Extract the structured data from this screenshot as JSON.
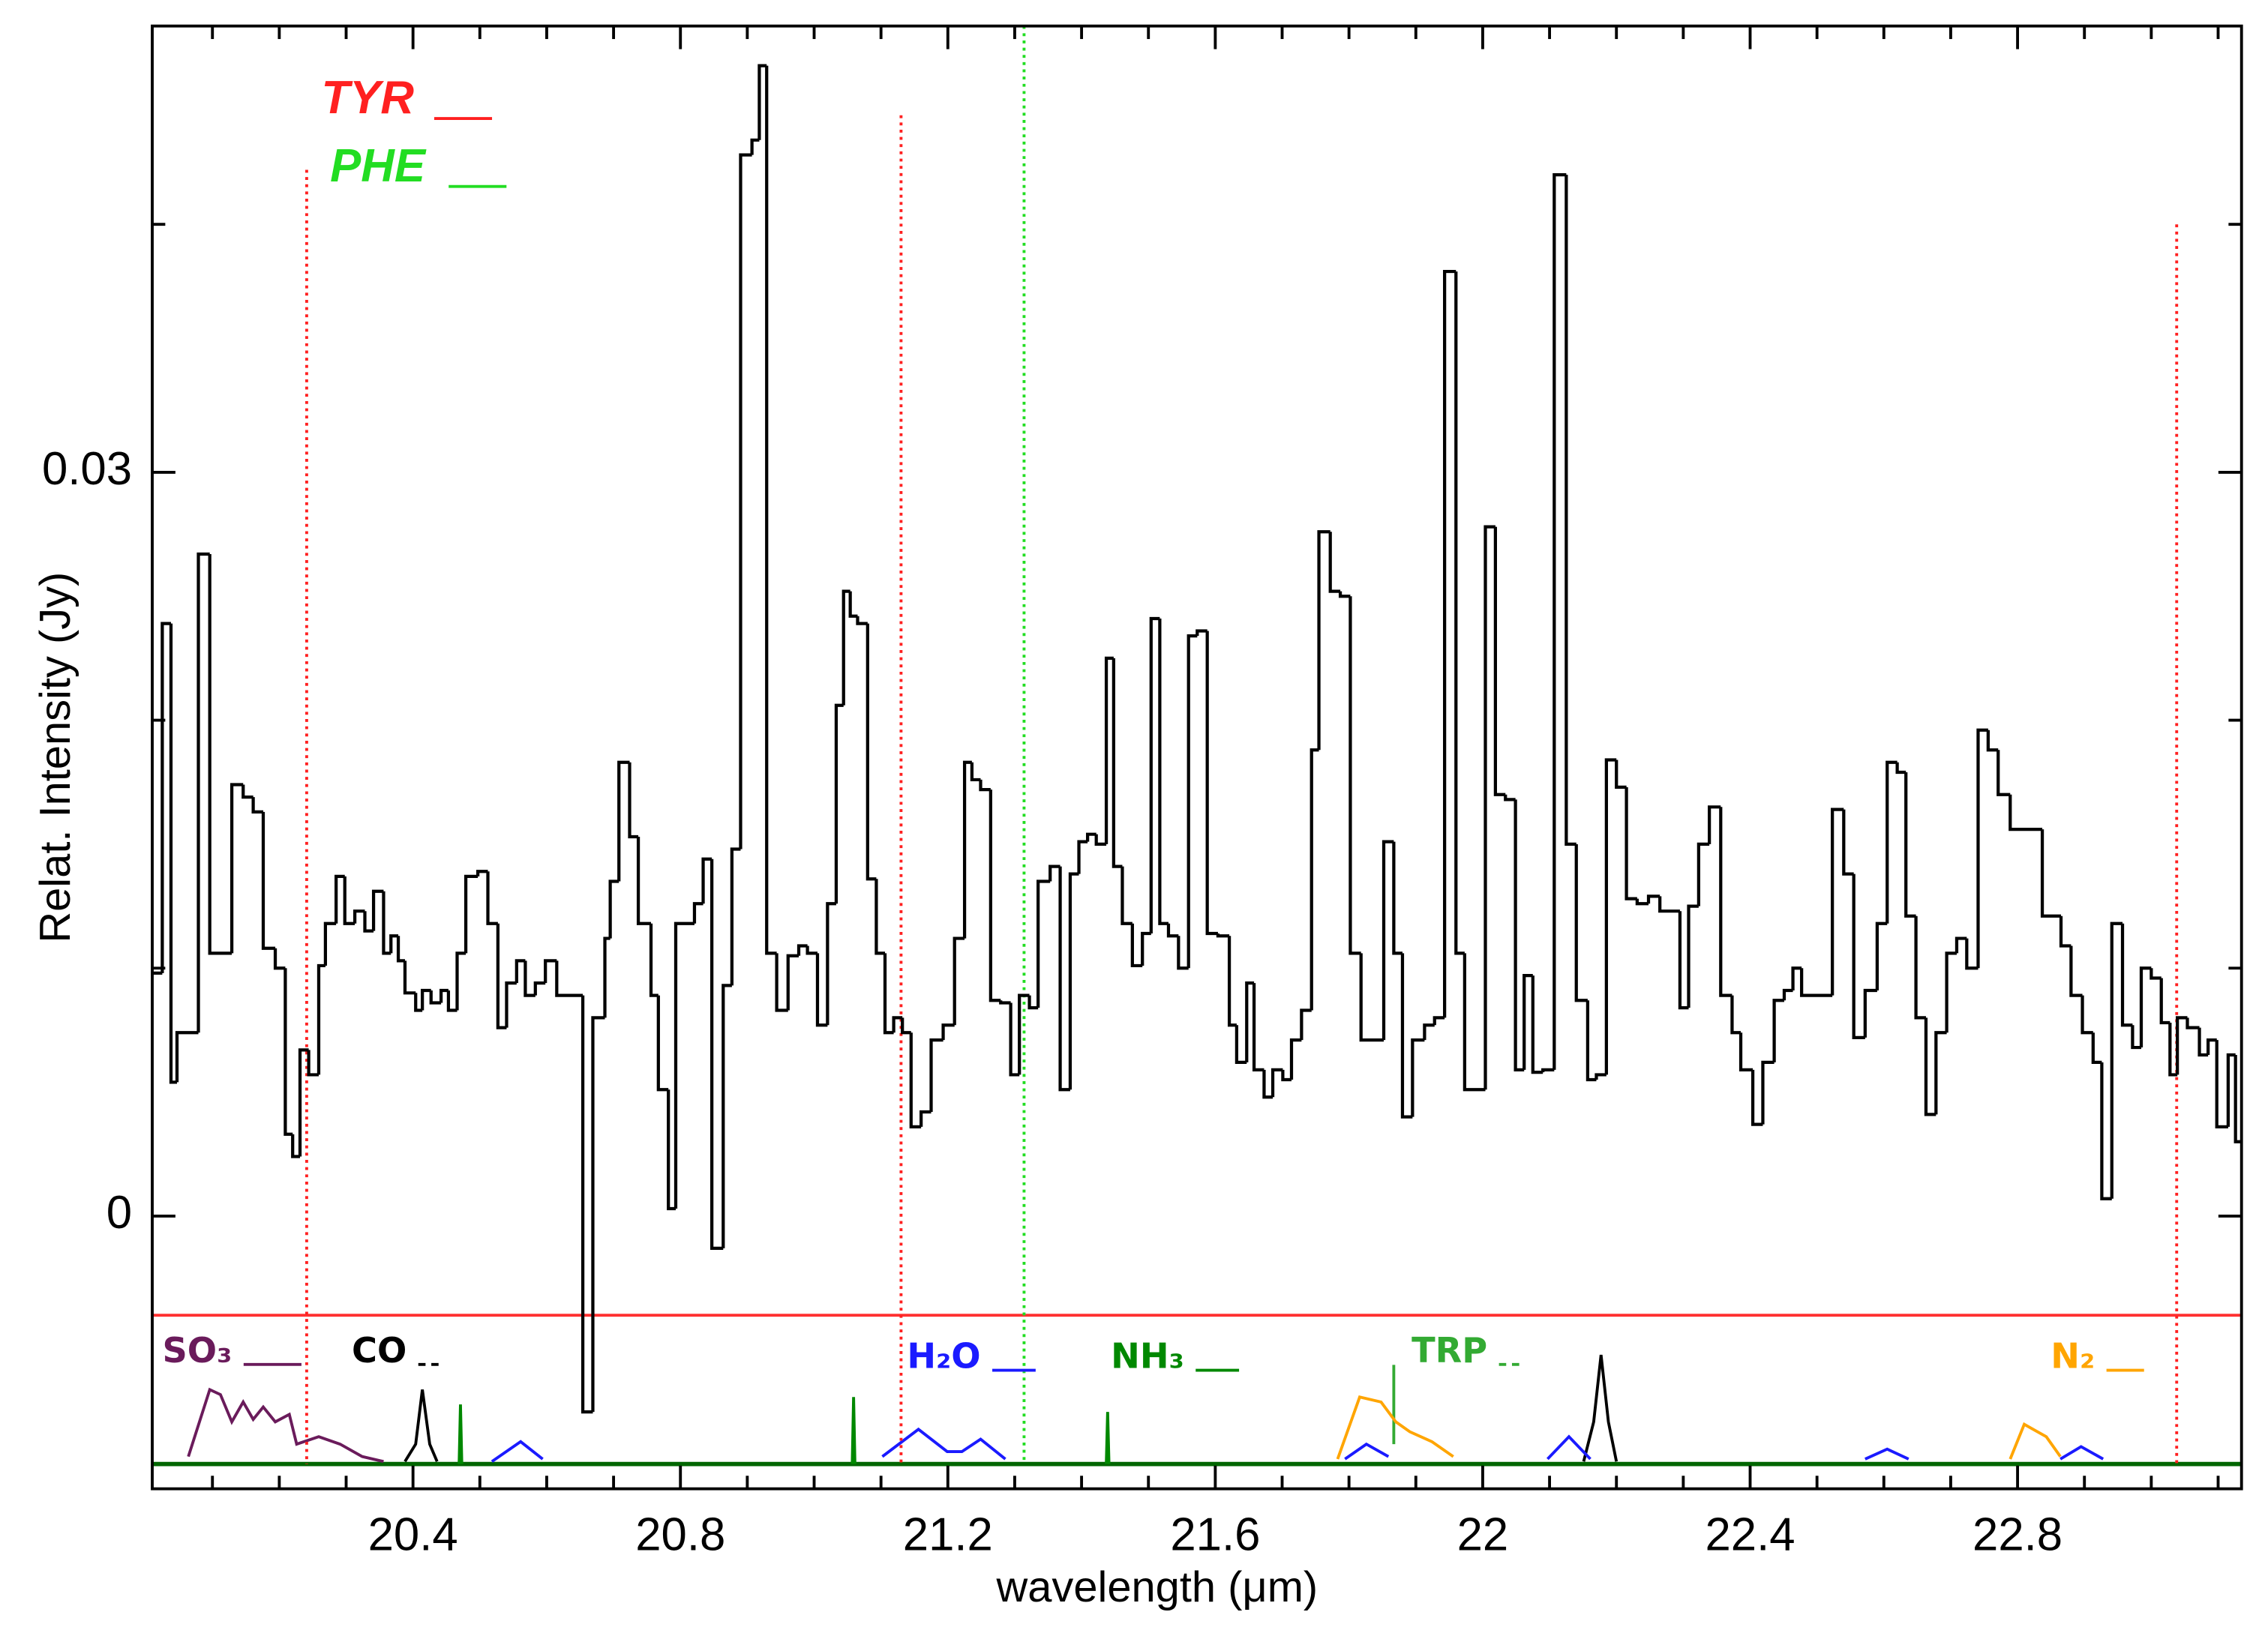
{
  "chart_data": {
    "type": "step",
    "y_label": "Relat. Intensity (Jy)",
    "x_label": "wavelength (μm)",
    "xlim": [
      20.01,
      23.135
    ],
    "ylim": [
      -0.011,
      0.048
    ],
    "xticks": [
      20.4,
      20.8,
      21.2,
      21.6,
      22,
      22.4,
      22.8
    ],
    "xminor": [
      20.1,
      20.2,
      20.3,
      20.5,
      20.6,
      20.7,
      20.9,
      21,
      21.1,
      21.3,
      21.4,
      21.5,
      21.7,
      21.8,
      21.9,
      22.1,
      22.2,
      22.3,
      22.5,
      22.6,
      22.7,
      22.9,
      23,
      23.1
    ],
    "yticks": [
      0,
      0.03
    ],
    "yminor": [
      0.01,
      0.02,
      0.04
    ],
    "series": [
      {
        "color": "#000000",
        "bins": [
          20.01,
          20.025,
          20.038,
          20.047,
          20.079,
          20.096,
          20.129,
          20.146,
          20.161,
          20.176,
          20.194,
          20.209,
          20.22,
          20.231,
          20.244,
          20.259,
          20.269,
          20.285,
          20.298,
          20.313,
          20.328,
          20.341,
          20.356,
          20.367,
          20.378,
          20.388,
          20.404,
          20.414,
          20.427,
          20.442,
          20.453,
          20.466,
          20.479,
          20.497,
          20.512,
          20.527,
          20.54,
          20.555,
          20.568,
          20.583,
          20.598,
          20.615,
          20.654,
          20.669,
          20.687,
          20.695,
          20.708,
          20.724,
          20.737,
          20.756,
          20.767,
          20.782,
          20.793,
          20.821,
          20.834,
          20.847,
          20.864,
          20.877,
          20.89,
          20.907,
          20.918,
          20.929,
          20.944,
          20.961,
          20.977,
          20.99,
          21.005,
          21.02,
          21.033,
          21.044,
          21.054,
          21.065,
          21.08,
          21.093,
          21.106,
          21.119,
          21.132,
          21.145,
          21.16,
          21.175,
          21.193,
          21.21,
          21.225,
          21.236,
          21.249,
          21.264,
          21.279,
          21.294,
          21.307,
          21.322,
          21.335,
          21.353,
          21.368,
          21.383,
          21.396,
          21.409,
          21.422,
          21.437,
          21.448,
          21.461,
          21.476,
          21.491,
          21.504,
          21.517,
          21.53,
          21.545,
          21.56,
          21.573,
          21.588,
          21.604,
          21.621,
          21.632,
          21.647,
          21.658,
          21.673,
          21.686,
          21.701,
          21.714,
          21.729,
          21.744,
          21.755,
          21.772,
          21.787,
          21.802,
          21.818,
          21.852,
          21.867,
          21.88,
          21.895,
          21.913,
          21.928,
          21.943,
          21.96,
          21.973,
          22.004,
          22.019,
          22.034,
          22.049,
          22.062,
          22.075,
          22.09,
          22.107,
          22.125,
          22.14,
          22.157,
          22.17,
          22.185,
          22.2,
          22.215,
          22.231,
          22.248,
          22.265,
          22.295,
          22.308,
          22.323,
          22.339,
          22.356,
          22.373,
          22.386,
          22.404,
          22.419,
          22.436,
          22.451,
          22.464,
          22.477,
          22.523,
          22.54,
          22.555,
          22.572,
          22.59,
          22.605,
          22.62,
          22.633,
          22.648,
          22.663,
          22.678,
          22.694,
          22.709,
          22.724,
          22.741,
          22.756,
          22.771,
          22.789,
          22.837,
          22.865,
          22.88,
          22.897,
          22.913,
          22.926,
          22.941,
          22.957,
          22.972,
          22.985,
          23.0,
          23.015,
          23.028,
          23.039,
          23.054,
          23.072,
          23.085,
          23.098,
          23.115,
          23.126,
          23.135
        ],
        "values": [
          0.0098,
          0.0239,
          0.0054,
          0.0074,
          0.0267,
          0.0106,
          0.0174,
          0.0169,
          0.0163,
          0.0108,
          0.01,
          0.0033,
          0.0024,
          0.0067,
          0.0057,
          0.0101,
          0.0118,
          0.0137,
          0.0118,
          0.0123,
          0.0115,
          0.0131,
          0.0106,
          0.0113,
          0.0103,
          0.009,
          0.0083,
          0.0091,
          0.0086,
          0.0091,
          0.0083,
          0.0106,
          0.0137,
          0.0139,
          0.0118,
          0.0076,
          0.0094,
          0.0103,
          0.0089,
          0.0094,
          0.0103,
          0.0089,
          -0.0079,
          0.008,
          0.0112,
          0.0135,
          0.0183,
          0.0153,
          0.0118,
          0.0089,
          0.0051,
          0.0003,
          0.0118,
          0.0126,
          0.0144,
          -0.0013,
          0.0093,
          0.0148,
          0.0428,
          0.0434,
          0.0464,
          0.0106,
          0.0083,
          0.0105,
          0.0109,
          0.0106,
          0.0077,
          0.0126,
          0.0206,
          0.0252,
          0.0242,
          0.0239,
          0.0136,
          0.0106,
          0.0074,
          0.008,
          0.0074,
          0.0036,
          0.0042,
          0.0071,
          0.0077,
          0.0112,
          0.0183,
          0.0176,
          0.0172,
          0.0087,
          0.0086,
          0.0057,
          0.0089,
          0.0084,
          0.0135,
          0.0141,
          0.0051,
          0.0138,
          0.0151,
          0.0154,
          0.015,
          0.0225,
          0.0141,
          0.0118,
          0.0101,
          0.0114,
          0.0241,
          0.0118,
          0.0113,
          0.01,
          0.0234,
          0.0236,
          0.0114,
          0.0113,
          0.0077,
          0.0062,
          0.0094,
          0.0059,
          0.0048,
          0.0059,
          0.0055,
          0.0071,
          0.0083,
          0.0188,
          0.0276,
          0.0252,
          0.025,
          0.0106,
          0.0071,
          0.0151,
          0.0106,
          0.004,
          0.0071,
          0.0077,
          0.008,
          0.0381,
          0.0106,
          0.0051,
          0.0278,
          0.017,
          0.0168,
          0.0059,
          0.0097,
          0.0058,
          0.0059,
          0.042,
          0.015,
          0.0087,
          0.0055,
          0.0057,
          0.0184,
          0.0173,
          0.0128,
          0.0126,
          0.0129,
          0.0123,
          0.0084,
          0.0125,
          0.015,
          0.0165,
          0.0089,
          0.0074,
          0.0059,
          0.0037,
          0.0062,
          0.0087,
          0.0091,
          0.01,
          0.0089,
          0.0164,
          0.0138,
          0.0072,
          0.0091,
          0.0118,
          0.0183,
          0.0179,
          0.0121,
          0.008,
          0.0041,
          0.0074,
          0.0106,
          0.0112,
          0.01,
          0.0196,
          0.0188,
          0.017,
          0.0156,
          0.0121,
          0.0109,
          0.0089,
          0.0074,
          0.0062,
          0.0007,
          0.0118,
          0.0077,
          0.0068,
          0.01,
          0.0096,
          0.0078,
          0.0057,
          0.008,
          0.0076,
          0.0065,
          0.0071,
          0.0036,
          0.0065,
          0.003
        ]
      }
    ],
    "markers": [
      {
        "name": "TYR",
        "color": "#ff2020",
        "x": [
          20.241,
          21.13,
          23.038
        ],
        "top": [
          0.0422,
          0.0444,
          0.04
        ]
      },
      {
        "name": "PHE",
        "color": "#22dd22",
        "x": [
          21.314
        ],
        "top": [
          0.048
        ]
      }
    ],
    "separator": -0.004,
    "separator_color": "#ff3030",
    "templates": {
      "baseline": -0.01,
      "baseline_color": "#006600",
      "series": [
        {
          "name": "SO₃",
          "color": "#6a1b5b",
          "legend_dash": false,
          "x": [
            20.064,
            20.096,
            20.112,
            20.129,
            20.146,
            20.161,
            20.176,
            20.194,
            20.215,
            20.226,
            20.259,
            20.291,
            20.324,
            20.356
          ],
          "values": [
            -0.0097,
            -0.007,
            -0.0072,
            -0.0083,
            -0.0075,
            -0.0082,
            -0.0077,
            -0.0083,
            -0.008,
            -0.0092,
            -0.0089,
            -0.0092,
            -0.0097,
            -0.0099
          ]
        },
        {
          "name": "CO",
          "color": "#000000",
          "legend_dash": true,
          "x": [
            20.388,
            20.404,
            20.414,
            20.425,
            20.436,
            null,
            22.151,
            22.166,
            22.177,
            22.188,
            22.2
          ],
          "values": [
            -0.0099,
            -0.0092,
            -0.007,
            -0.0092,
            -0.0099,
            null,
            -0.0099,
            -0.0083,
            -0.0056,
            -0.0083,
            -0.0099
          ]
        },
        {
          "name": "H₂O",
          "color": "#1a1aff",
          "legend_dash": false,
          "x": [
            20.518,
            20.561,
            20.594,
            null,
            21.102,
            21.156,
            21.199,
            21.221,
            21.249,
            21.286,
            null,
            21.794,
            21.826,
            21.859,
            null,
            22.097,
            22.129,
            22.161,
            null,
            22.572,
            22.605,
            22.637,
            null,
            22.864,
            22.895,
            22.928
          ],
          "values": [
            -0.0099,
            -0.0091,
            -0.0098,
            null,
            -0.0097,
            -0.0086,
            -0.0095,
            -0.0095,
            -0.009,
            -0.0098,
            null,
            -0.0098,
            -0.0092,
            -0.0097,
            null,
            -0.0098,
            -0.0089,
            -0.0098,
            null,
            -0.0098,
            -0.0094,
            -0.0098,
            null,
            -0.0098,
            -0.0093,
            -0.0098
          ]
        },
        {
          "name": "NH₃",
          "color": "#008800",
          "legend_dash": false,
          "x": [
            20.469,
            20.471,
            20.473,
            null,
            21.057,
            21.059,
            21.061,
            null,
            21.437,
            21.439,
            21.441
          ],
          "values": [
            -0.01,
            -0.0076,
            -0.01,
            null,
            -0.01,
            -0.0073,
            -0.01,
            null,
            -0.01,
            -0.0079,
            -0.01
          ]
        },
        {
          "name": "TRP",
          "color": "#33aa33",
          "legend_dash": true,
          "x": [
            21.867,
            21.867
          ],
          "values": [
            -0.006,
            -0.0092
          ]
        },
        {
          "name": "N₂",
          "color": "#ffa500",
          "legend_dash": false,
          "x": [
            21.783,
            21.816,
            21.848,
            21.87,
            21.891,
            21.924,
            21.956,
            null,
            22.789,
            22.81,
            22.843,
            22.864
          ],
          "values": [
            -0.0098,
            -0.0073,
            -0.0075,
            -0.0083,
            -0.0087,
            -0.0091,
            -0.0097,
            null,
            -0.0098,
            -0.0084,
            -0.0089,
            -0.0097
          ]
        }
      ]
    }
  }
}
